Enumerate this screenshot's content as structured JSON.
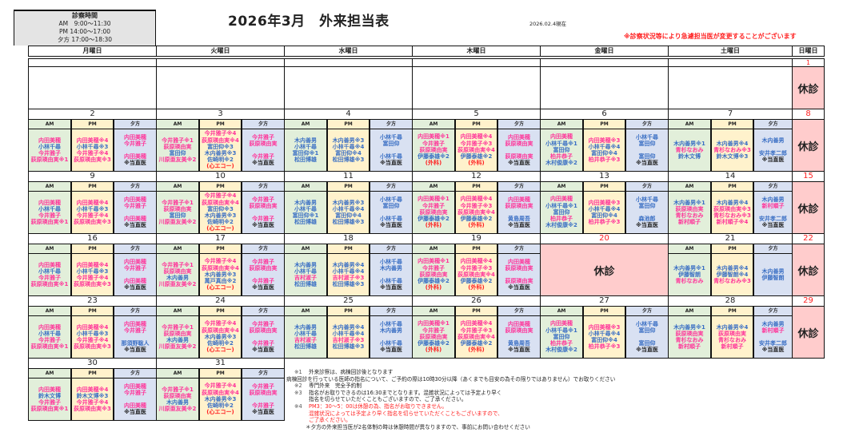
{
  "hours": {
    "title": "診察時間",
    "am": "AM　9:00～11:30",
    "pm": "PM 14:00～17:00",
    "eve": "夕方 17:00～18:30"
  },
  "title": "2026年3月　外来担当表",
  "as_of": "2026.02.4現在",
  "notice": "※診察状況等により急遽担当医が変更することがございます",
  "weekdays": [
    "月曜日",
    "火曜日",
    "水曜日",
    "木曜日",
    "金曜日",
    "土曜日",
    "日曜日"
  ],
  "slot_labels": [
    "AM",
    "PM",
    "夕方"
  ],
  "closed_label": "休診",
  "colors": {
    "pink": "#ff3399",
    "blue": "#3a6fc4",
    "red": "#ff2020",
    "black": "#222222",
    "am_bg": "#e2efda",
    "pm_bg": "#fff2cc",
    "eve_bg": "#d9e1f2",
    "closed_bg": "#ffcccc"
  },
  "pink_names": [
    "内田美穂",
    "今井雅子",
    "荻原瑛由実",
    "川原亜友美",
    "柏井恭子",
    "青杉なおみ",
    "吉村淑子",
    "新村順子"
  ],
  "weeks": [
    {
      "days": [
        {
          "date": ""
        },
        {
          "date": ""
        },
        {
          "date": ""
        },
        {
          "date": ""
        },
        {
          "date": ""
        },
        {
          "date": ""
        },
        {
          "date": "1",
          "closed": true
        }
      ]
    },
    {
      "days": [
        {
          "date": "2",
          "am": [
            "内田美穂",
            "小林千尋",
            "今井雅子",
            "荻原瑛由実※1"
          ],
          "pm": [
            "内田美穂※4",
            "小林千尋※3",
            "今井雅子※4",
            "荻原瑛由実※3"
          ],
          "eve": [
            "内田美穂",
            "今井雅子",
            "",
            "内田美穂",
            "※当直医"
          ]
        },
        {
          "date": "3",
          "am": [
            "今井雅子※1",
            "荻原瑛由実",
            "富田仰",
            "川原亜友美※2"
          ],
          "pm": [
            "今井雅子※4",
            "荻原瑛由実※4",
            "富田仰※3",
            "木内善男※3",
            "佐崎明※2",
            "(心エコー)"
          ],
          "eve": [
            "今井雅子",
            "荻原瑛由実",
            "",
            "今井雅子",
            "※当直医"
          ]
        },
        {
          "date": "4",
          "am": [
            "木内善男",
            "小林千尋",
            "富田仰※1",
            "松田博雄"
          ],
          "pm": [
            "木内善男※3",
            "小林千尋※4",
            "富田仰※4",
            "松田博雄※3"
          ],
          "eve": [
            "小林千尋",
            "富田仰",
            "",
            "小林千尋",
            "※当直医"
          ]
        },
        {
          "date": "5",
          "am": [
            "内田美穂※1",
            "今井雅子",
            "荻原瑛由実",
            "伊藤泰雄※2",
            "(外科)"
          ],
          "pm": [
            "内田美穂※4",
            "今井雅子※3",
            "荻原瑛由実※4",
            "伊藤泰雄※2",
            "(外科)"
          ],
          "eve": [
            "内田美穂",
            "荻原瑛由実",
            "",
            "荻原瑛由実",
            "※当直医"
          ]
        },
        {
          "date": "6",
          "am": [
            "内田美穂",
            "小林千尋※1",
            "富田仰",
            "柏井恭子",
            "木村俊康※2"
          ],
          "pm": [
            "内田美穂※3",
            "小林千尋※4",
            "富田仰※4",
            "柏井恭子※3"
          ],
          "eve": [
            "小林千尋",
            "富田仰",
            "",
            "富田仰",
            "※当直医"
          ]
        },
        {
          "date": "7",
          "am": [
            "木内善男※1",
            "青杉なおみ",
            "鈴木文博"
          ],
          "pm": [
            "木内善男※4",
            "青杉なおみ※3",
            "鈴木文博※3"
          ],
          "eve": [
            "木内善男",
            "",
            "安井孝二郎",
            "※当直医"
          ]
        },
        {
          "date": "8",
          "closed": true
        }
      ]
    },
    {
      "days": [
        {
          "date": "9",
          "am": [
            "内田美穂",
            "小林千尋",
            "今井雅子",
            "荻原瑛由実※1"
          ],
          "pm": [
            "内田美穂※4",
            "小林千尋※3",
            "今井雅子※4",
            "荻原瑛由実※3"
          ],
          "eve": [
            "内田美穂",
            "今井雅子",
            "",
            "内田美穂",
            "※当直医"
          ]
        },
        {
          "date": "10",
          "am": [
            "今井雅子※1",
            "荻原瑛由実",
            "富田仰",
            "川原亜友美※2"
          ],
          "pm": [
            "今井雅子※4",
            "荻原瑛由実※4",
            "富田仰※3",
            "木内善男※3",
            "佐崎明※2",
            "(心エコー)"
          ],
          "eve": [
            "今井雅子",
            "荻原瑛由実",
            "",
            "今井雅子",
            "※当直医"
          ]
        },
        {
          "date": "11",
          "am": [
            "木内善男",
            "小林千尋",
            "富田仰※1",
            "松田博雄"
          ],
          "pm": [
            "木内善男※3",
            "小林千尋※4",
            "富田仰※4",
            "松田博雄※3"
          ],
          "eve": [
            "小林千尋",
            "富田仰",
            "",
            "小林千尋",
            "※当直医"
          ]
        },
        {
          "date": "12",
          "am": [
            "内田美穂※1",
            "今井雅子",
            "荻原瑛由実",
            "伊藤泰雄※2",
            "(外科)"
          ],
          "pm": [
            "内田美穂※4",
            "今井雅子※3",
            "荻原瑛由実※4",
            "伊藤泰雄※2",
            "(外科)"
          ],
          "eve": [
            "内田美穂",
            "荻原瑛由実",
            "",
            "黄島周吾",
            "※当直医"
          ]
        },
        {
          "date": "13",
          "am": [
            "内田美穂",
            "小林千尋※1",
            "富田仰",
            "柏井恭子",
            "木村俊康※2"
          ],
          "pm": [
            "内田美穂※3",
            "小林千尋※4",
            "富田仰※4",
            "柏井恭子※3"
          ],
          "eve": [
            "小林千尋",
            "富田仰",
            "",
            "森池郎",
            "※当直医"
          ]
        },
        {
          "date": "14",
          "am": [
            "木内善男※1",
            "荻原瑛由実",
            "青杉なおみ",
            "新村順子"
          ],
          "pm": [
            "木内善男※4",
            "荻原瑛由実※3",
            "青杉なおみ※3",
            "新村順子※4"
          ],
          "eve": [
            "木内善男",
            "新村順子",
            "",
            "安井孝二郎",
            "※当直医"
          ]
        },
        {
          "date": "15",
          "closed": true
        }
      ]
    },
    {
      "days": [
        {
          "date": "16",
          "am": [
            "内田美穂",
            "小林千尋",
            "今井雅子",
            "荻原瑛由実※1"
          ],
          "pm": [
            "内田美穂※4",
            "小林千尋※3",
            "今井雅子※4",
            "荻原瑛由実※3"
          ],
          "eve": [
            "内田美穂",
            "今井雅子",
            "",
            "内田美穂",
            "※当直医"
          ]
        },
        {
          "date": "17",
          "am": [
            "今井雅子※1",
            "荻原瑛由実",
            "木内善男",
            "川原亜友美※2"
          ],
          "pm": [
            "今井雅子※4",
            "荻原瑛由実※4",
            "木内善男※3",
            "萬戸真由※2",
            "(心エコー)"
          ],
          "eve": [
            "今井雅子",
            "荻原瑛由実",
            "",
            "今井雅子",
            "※当直医"
          ]
        },
        {
          "date": "18",
          "am": [
            "木内善男",
            "小林千尋",
            "吉村淑子",
            "松田博雄"
          ],
          "pm": [
            "木内善男※4",
            "小林千尋※4",
            "吉村淑子※3",
            "松田博雄※3"
          ],
          "eve": [
            "小林千尋",
            "木内善男",
            "",
            "小林千尋",
            "※当直医"
          ]
        },
        {
          "date": "19",
          "am": [
            "内田美穂※1",
            "今井雅子",
            "荻原瑛由実",
            "伊藤泰雄※2",
            "(外科)"
          ],
          "pm": [
            "内田美穂※4",
            "今井雅子※3",
            "荻原瑛由実※4",
            "伊藤泰雄※2",
            "(外科)"
          ],
          "eve": [
            "内田美穂",
            "荻原瑛由実",
            "",
            "荻原瑛由実",
            "※当直医"
          ]
        },
        {
          "date": "20",
          "closed": true
        },
        {
          "date": "21",
          "am": [
            "木内善男※1",
            "伊藤智朗",
            "青杉なおみ"
          ],
          "pm": [
            "木内善男※4",
            "伊藤智朗※4",
            "青杉なおみ※3"
          ],
          "eve": [
            "木内善男",
            "伊藤智朗"
          ]
        },
        {
          "date": "22",
          "closed": true
        }
      ]
    },
    {
      "days": [
        {
          "date": "23",
          "am": [
            "内田美穂",
            "小林千尋",
            "今井雅子",
            "荻原瑛由実※1"
          ],
          "pm": [
            "内田美穂※4",
            "小林千尋※3",
            "今井雅子※4",
            "荻原瑛由実※3"
          ],
          "eve": [
            "内田美穂",
            "今井雅子",
            "",
            "那須野聡人",
            "※当直医"
          ]
        },
        {
          "date": "24",
          "am": [
            "今井雅子※1",
            "荻原瑛由実",
            "木内善男",
            "川原亜友美※2"
          ],
          "pm": [
            "今井雅子※4",
            "荻原瑛由実※4",
            "木内善男※3",
            "佐崎明※2",
            "(心エコー)"
          ],
          "eve": [
            "今井雅子",
            "荻原瑛由実",
            "",
            "今井雅子",
            "※当直医"
          ]
        },
        {
          "date": "25",
          "am": [
            "木内善男",
            "小林千尋",
            "吉村淑子",
            "松田博雄"
          ],
          "pm": [
            "木内善男※4",
            "小林千尋※4",
            "吉村淑子※3",
            "松田博雄※3"
          ],
          "eve": [
            "小林千尋",
            "木内善男",
            "",
            "小林千尋",
            "※当直医"
          ]
        },
        {
          "date": "26",
          "am": [
            "内田美穂※1",
            "今井雅子",
            "荻原瑛由実",
            "伊藤泰雄※2",
            "(外科)"
          ],
          "pm": [
            "内田美穂※4",
            "今井雅子※3",
            "荻原瑛由実※4",
            "伊藤泰雄※2",
            "(外科)"
          ],
          "eve": [
            "内田美穂",
            "荻原瑛由実",
            "",
            "黄島周吾",
            "※当直医"
          ]
        },
        {
          "date": "27",
          "am": [
            "内田美穂",
            "小林千尋※1",
            "富田仰",
            "柏井恭子",
            "木村俊康※2"
          ],
          "pm": [
            "内田美穂※3",
            "小林千尋※4",
            "富田仰※4",
            "柏井恭子※3"
          ],
          "eve": [
            "小林千尋",
            "富田仰",
            "",
            "富田仰",
            "※当直医"
          ]
        },
        {
          "date": "28",
          "am": [
            "木内善男※1",
            "荻原瑛由実",
            "青杉なおみ",
            "新村順子"
          ],
          "pm": [
            "木内善男※4",
            "荻原瑛由実",
            "青杉なおみ",
            "新村順子"
          ],
          "eve": [
            "木内善男",
            "新村順子",
            "",
            "安井孝二郎",
            "※当直医"
          ]
        },
        {
          "date": "29",
          "closed": true
        }
      ]
    },
    {
      "days": [
        {
          "date": "30",
          "am": [
            "内田美穂",
            "鈴木文博",
            "今井雅子",
            "荻原瑛由実※1"
          ],
          "pm": [
            "内田美穂※4",
            "鈴木文博※3",
            "今井雅子※4",
            "荻原瑛由実※3"
          ],
          "eve": [
            "内田美穂",
            "今井雅子",
            "",
            "内田美穂",
            "※当直医"
          ]
        },
        {
          "date": "31",
          "am": [
            "今井雅子※1",
            "荻原瑛由実",
            "木内善男",
            "川原亜友美※2"
          ],
          "pm": [
            "今井雅子※4",
            "荻原瑛由実※4",
            "木内善男※3",
            "佐崎明※2",
            "(心エコー)"
          ],
          "eve": [
            "今井雅子",
            "荻原瑛由実",
            "",
            "今井雅子",
            "※当直医"
          ]
        }
      ]
    }
  ],
  "notes": {
    "n1_mark": "※1",
    "n1": "外来診察は、病棟回診後となります",
    "n1b": "病棟回診を行っている医師の指名について、ご予約の際は10時30分以降（あくまでも目安の為その限りではありません）でお取りください",
    "n2_mark": "※2",
    "n2": "専門外来　完全予約制",
    "n3_mark": "※3",
    "n3": "指名がお取りできるのは16:30までとなります。混雑状況によっては予定より早く",
    "n3b": "指名を切らせていただくこともございますので、ご了承ください。",
    "n4_mark": "※4",
    "n4": "PM3：30～5：00は休憩の為、指名がお取りできません。",
    "n4b": "混雑状況によっては予定より早く指名を切らせていただくこともございますので、",
    "n4c": "ご了承ください。",
    "n5": "＊夕方の外来担当医が2名体制の時は休憩時間が異なりますので、事前にお問い合わせください"
  }
}
